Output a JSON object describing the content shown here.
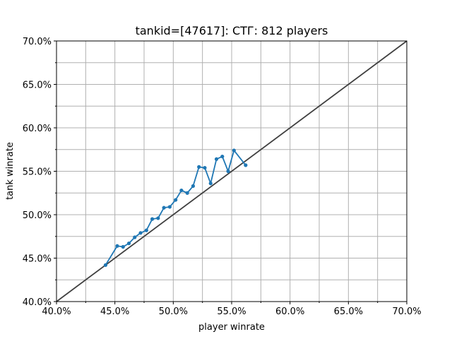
{
  "chart_data": {
    "type": "line",
    "title": "tankid=[47617]: СТГ: 812 players",
    "xlabel": "player winrate",
    "ylabel": "tank winrate",
    "xlim": [
      0.4,
      0.7
    ],
    "ylim": [
      0.4,
      0.7
    ],
    "x_ticks": [
      "40.0%",
      "45.0%",
      "50.0%",
      "55.0%",
      "60.0%",
      "65.0%",
      "70.0%"
    ],
    "y_ticks": [
      "40.0%",
      "45.0%",
      "50.0%",
      "55.0%",
      "60.0%",
      "65.0%",
      "70.0%"
    ],
    "grid": true,
    "reference_line": {
      "x": [
        0.4,
        0.7
      ],
      "y": [
        0.4,
        0.7
      ],
      "color": "#404040"
    },
    "series": [
      {
        "color": "#1f77b4",
        "x": [
          0.442,
          0.452,
          0.457,
          0.462,
          0.467,
          0.472,
          0.477,
          0.482,
          0.487,
          0.492,
          0.497,
          0.502,
          0.507,
          0.512,
          0.517,
          0.522,
          0.527,
          0.532,
          0.537,
          0.542,
          0.547,
          0.552,
          0.562
        ],
        "y": [
          0.442,
          0.464,
          0.463,
          0.467,
          0.474,
          0.479,
          0.482,
          0.495,
          0.496,
          0.508,
          0.509,
          0.517,
          0.528,
          0.525,
          0.533,
          0.555,
          0.554,
          0.536,
          0.564,
          0.567,
          0.55,
          0.574,
          0.557
        ]
      }
    ]
  }
}
